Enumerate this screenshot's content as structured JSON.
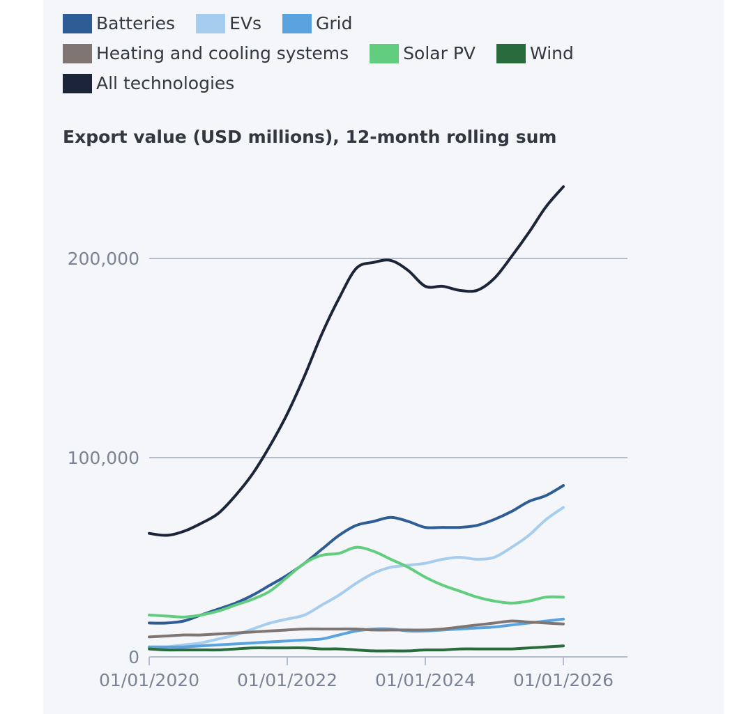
{
  "chart_data": {
    "type": "line",
    "title": "Export value (USD millions), 12-month rolling sum",
    "xlabel": "",
    "ylabel": "",
    "ylim": [
      0,
      230000
    ],
    "xlim": [
      "2020-01-01",
      "2026-01-01"
    ],
    "yticks": [
      0,
      100000,
      200000
    ],
    "ytick_labels": [
      "0",
      "100,000",
      "200,000"
    ],
    "xtick_labels": [
      "01/01/2020",
      "01/01/2022",
      "01/01/2024",
      "01/01/2026"
    ],
    "grid": true,
    "legend_position": "top",
    "x": [
      "2020-01",
      "2020-04",
      "2020-07",
      "2020-10",
      "2021-01",
      "2021-04",
      "2021-07",
      "2021-10",
      "2022-01",
      "2022-04",
      "2022-07",
      "2022-10",
      "2023-01",
      "2023-04",
      "2023-07",
      "2023-10",
      "2024-01",
      "2024-04",
      "2024-07",
      "2024-10",
      "2025-01",
      "2025-04",
      "2025-07",
      "2025-10",
      "2026-01"
    ],
    "series": [
      {
        "name": "Batteries",
        "color": "#2e5c94",
        "values": [
          17000,
          17000,
          18000,
          21000,
          24000,
          27000,
          31000,
          36000,
          41000,
          47000,
          54000,
          61000,
          66000,
          68000,
          70000,
          68000,
          65000,
          65000,
          65000,
          66000,
          69000,
          73000,
          78000,
          81000,
          86000
        ]
      },
      {
        "name": "EVs",
        "color": "#a7cdee",
        "values": [
          5000,
          5000,
          6000,
          7000,
          9000,
          11000,
          14000,
          17000,
          19000,
          21000,
          26000,
          31000,
          37000,
          42000,
          45000,
          46000,
          47000,
          49000,
          50000,
          49000,
          50000,
          55000,
          61000,
          69000,
          75000
        ]
      },
      {
        "name": "Grid",
        "color": "#5aa3df",
        "values": [
          5000,
          5000,
          5000,
          5500,
          6000,
          6500,
          7000,
          7500,
          8000,
          8500,
          9000,
          11000,
          13000,
          14000,
          14000,
          13000,
          13000,
          13500,
          14000,
          14500,
          15000,
          16000,
          17000,
          18000,
          19000
        ]
      },
      {
        "name": "Heating and cooling systems",
        "color": "#7f7674",
        "values": [
          10000,
          10500,
          11000,
          11000,
          11500,
          12000,
          12500,
          13000,
          13500,
          14000,
          14000,
          14000,
          14000,
          13500,
          13500,
          13500,
          13500,
          14000,
          15000,
          16000,
          17000,
          18000,
          17500,
          17000,
          16500
        ]
      },
      {
        "name": "Solar PV",
        "color": "#62cd7e",
        "values": [
          21000,
          20500,
          20000,
          21000,
          23000,
          26000,
          29000,
          33000,
          40000,
          47000,
          51000,
          52000,
          55000,
          53000,
          49000,
          45000,
          40000,
          36000,
          33000,
          30000,
          28000,
          27000,
          28000,
          30000,
          30000
        ]
      },
      {
        "name": "Wind",
        "color": "#2a6b3e",
        "values": [
          4000,
          3500,
          3500,
          3500,
          3500,
          4000,
          4500,
          4500,
          4500,
          4500,
          4000,
          4000,
          3500,
          3000,
          3000,
          3000,
          3500,
          3500,
          4000,
          4000,
          4000,
          4000,
          4500,
          5000,
          5500
        ]
      },
      {
        "name": "All technologies",
        "color": "#1b2438",
        "values": [
          62000,
          61000,
          63000,
          67000,
          72000,
          81000,
          92000,
          106000,
          122000,
          141000,
          162000,
          180000,
          195000,
          198000,
          199000,
          194000,
          186000,
          186000,
          184000,
          184000,
          190000,
          201000,
          213000,
          226000,
          236000
        ]
      }
    ]
  }
}
